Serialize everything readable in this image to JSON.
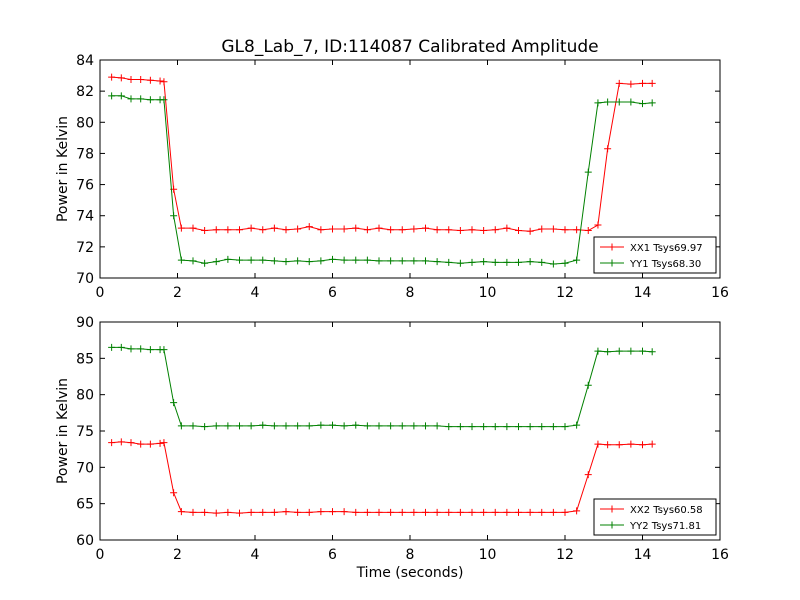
{
  "title": "GL8_Lab_7, ID:114087 Calibrated Amplitude",
  "chart_data": [
    {
      "type": "line",
      "title": "GL8_Lab_7, ID:114087 Calibrated Amplitude",
      "xlabel": "",
      "ylabel": "Power in Kelvin",
      "xlim": [
        0,
        16
      ],
      "ylim": [
        70,
        84
      ],
      "xticks": [
        0,
        2,
        4,
        6,
        8,
        10,
        12,
        14,
        16
      ],
      "yticks": [
        70,
        72,
        74,
        76,
        78,
        80,
        82,
        84
      ],
      "grid": false,
      "legend_position": "lower-right",
      "x": [
        0.3,
        0.55,
        0.8,
        1.05,
        1.3,
        1.55,
        1.65,
        1.9,
        2.1,
        2.4,
        2.7,
        3.0,
        3.3,
        3.6,
        3.9,
        4.2,
        4.5,
        4.8,
        5.1,
        5.4,
        5.7,
        6.0,
        6.3,
        6.6,
        6.9,
        7.2,
        7.5,
        7.8,
        8.1,
        8.4,
        8.7,
        9.0,
        9.3,
        9.6,
        9.9,
        10.2,
        10.5,
        10.8,
        11.1,
        11.4,
        11.7,
        12.0,
        12.3,
        12.6,
        12.85,
        13.1,
        13.4,
        13.7,
        14.0,
        14.25
      ],
      "series": [
        {
          "name": "XX1 Tsys69.97",
          "color": "#ff0000",
          "values": [
            82.9,
            82.85,
            82.75,
            82.75,
            82.7,
            82.65,
            82.6,
            75.7,
            73.2,
            73.2,
            73.05,
            73.1,
            73.1,
            73.1,
            73.2,
            73.1,
            73.2,
            73.1,
            73.15,
            73.3,
            73.1,
            73.15,
            73.15,
            73.2,
            73.1,
            73.2,
            73.1,
            73.1,
            73.15,
            73.2,
            73.1,
            73.1,
            73.05,
            73.1,
            73.05,
            73.1,
            73.2,
            73.05,
            73.0,
            73.15,
            73.15,
            73.1,
            73.1,
            73.05,
            73.4,
            78.3,
            82.5,
            82.45,
            82.5,
            82.5
          ]
        },
        {
          "name": "YY1 Tsys68.30",
          "color": "#008000",
          "values": [
            81.7,
            81.7,
            81.5,
            81.5,
            81.45,
            81.45,
            81.45,
            74.0,
            71.15,
            71.1,
            70.95,
            71.05,
            71.2,
            71.15,
            71.15,
            71.15,
            71.1,
            71.05,
            71.1,
            71.05,
            71.1,
            71.2,
            71.15,
            71.15,
            71.15,
            71.1,
            71.1,
            71.1,
            71.1,
            71.1,
            71.05,
            71.0,
            70.95,
            71.0,
            71.05,
            71.0,
            71.0,
            71.0,
            71.05,
            71.0,
            70.9,
            70.95,
            71.15,
            76.8,
            81.25,
            81.3,
            81.3,
            81.3,
            81.2,
            81.25
          ]
        }
      ]
    },
    {
      "type": "line",
      "title": "",
      "xlabel": "Time (seconds)",
      "ylabel": "Power in Kelvin",
      "xlim": [
        0,
        16
      ],
      "ylim": [
        60,
        90
      ],
      "xticks": [
        0,
        2,
        4,
        6,
        8,
        10,
        12,
        14,
        16
      ],
      "yticks": [
        60,
        65,
        70,
        75,
        80,
        85,
        90
      ],
      "grid": false,
      "legend_position": "lower-right",
      "x": [
        0.3,
        0.55,
        0.8,
        1.05,
        1.3,
        1.55,
        1.65,
        1.9,
        2.1,
        2.4,
        2.7,
        3.0,
        3.3,
        3.6,
        3.9,
        4.2,
        4.5,
        4.8,
        5.1,
        5.4,
        5.7,
        6.0,
        6.3,
        6.6,
        6.9,
        7.2,
        7.5,
        7.8,
        8.1,
        8.4,
        8.7,
        9.0,
        9.3,
        9.6,
        9.9,
        10.2,
        10.5,
        10.8,
        11.1,
        11.4,
        11.7,
        12.0,
        12.3,
        12.6,
        12.85,
        13.1,
        13.4,
        13.7,
        14.0,
        14.25
      ],
      "series": [
        {
          "name": "XX2 Tsys60.58",
          "color": "#ff0000",
          "values": [
            73.4,
            73.5,
            73.4,
            73.2,
            73.2,
            73.3,
            73.4,
            66.5,
            63.9,
            63.8,
            63.8,
            63.7,
            63.8,
            63.7,
            63.8,
            63.8,
            63.8,
            63.9,
            63.8,
            63.8,
            63.9,
            63.9,
            63.9,
            63.8,
            63.8,
            63.8,
            63.8,
            63.8,
            63.8,
            63.8,
            63.8,
            63.8,
            63.8,
            63.8,
            63.8,
            63.8,
            63.8,
            63.8,
            63.8,
            63.8,
            63.8,
            63.8,
            64.0,
            69.0,
            73.2,
            73.1,
            73.1,
            73.2,
            73.1,
            73.2
          ]
        },
        {
          "name": "YY2 Tsys71.81",
          "color": "#008000",
          "values": [
            86.5,
            86.5,
            86.3,
            86.3,
            86.2,
            86.2,
            86.2,
            78.9,
            75.7,
            75.7,
            75.6,
            75.7,
            75.7,
            75.7,
            75.7,
            75.8,
            75.7,
            75.7,
            75.7,
            75.7,
            75.8,
            75.8,
            75.7,
            75.8,
            75.7,
            75.7,
            75.7,
            75.7,
            75.7,
            75.7,
            75.7,
            75.6,
            75.6,
            75.6,
            75.6,
            75.6,
            75.6,
            75.6,
            75.6,
            75.6,
            75.6,
            75.6,
            75.8,
            81.3,
            86.0,
            85.9,
            86.0,
            86.0,
            86.0,
            85.9
          ]
        }
      ]
    }
  ]
}
